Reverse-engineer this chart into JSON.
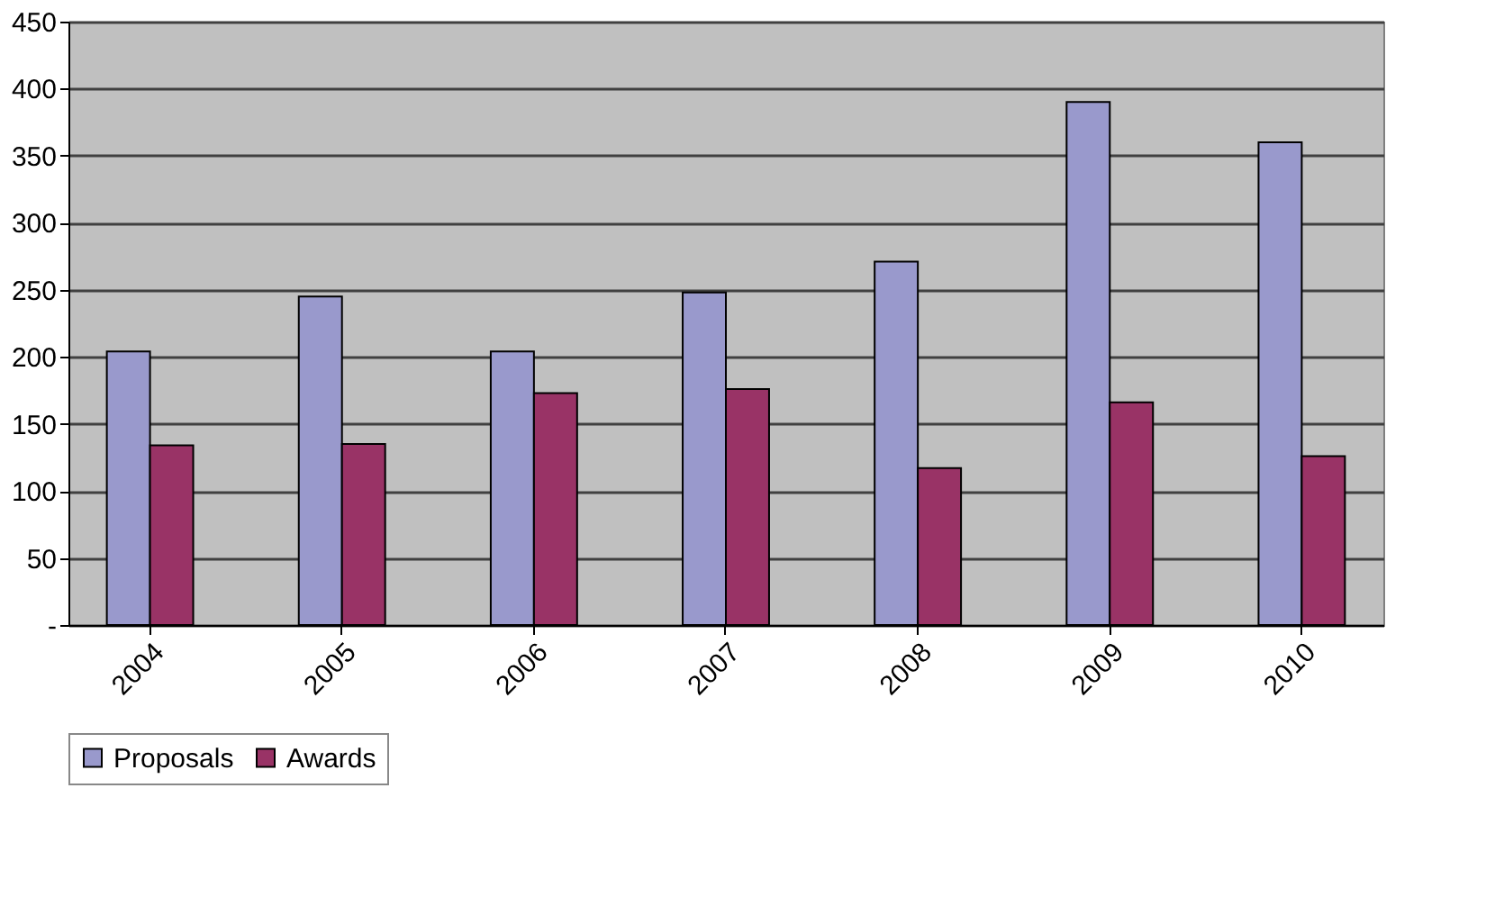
{
  "chart_data": {
    "type": "bar",
    "categories": [
      "2004",
      "2005",
      "2006",
      "2007",
      "2008",
      "2009",
      "2010"
    ],
    "series": [
      {
        "name": "Proposals",
        "color": "#9999cc",
        "values": [
          204,
          245,
          204,
          248,
          271,
          390,
          360
        ]
      },
      {
        "name": "Awards",
        "color": "#993366",
        "values": [
          134,
          135,
          173,
          176,
          117,
          166,
          126
        ]
      }
    ],
    "ylim": [
      0,
      450
    ],
    "yticks": [
      {
        "value": 0,
        "label": "-"
      },
      50,
      100,
      150,
      200,
      250,
      300,
      350,
      400,
      450
    ],
    "grid": "y",
    "legend": "bottom"
  }
}
